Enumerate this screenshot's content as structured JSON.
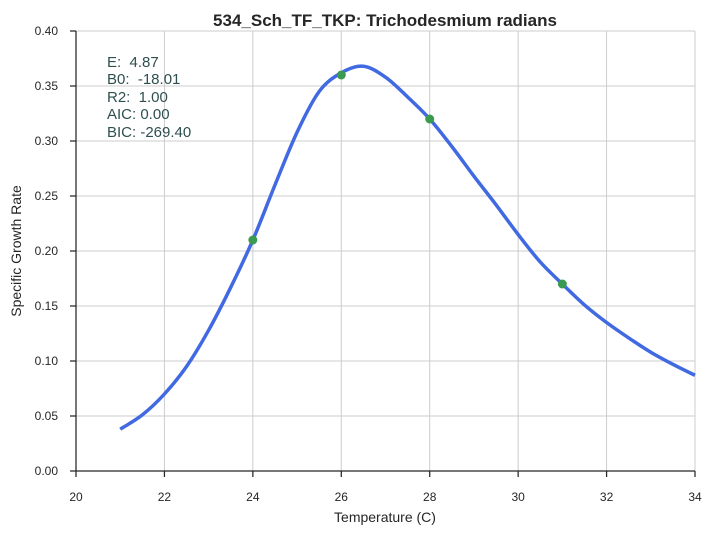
{
  "chart_data": {
    "type": "line",
    "title": "534_Sch_TF_TKP: Trichodesmium radians",
    "xlabel": "Temperature (C)",
    "ylabel": "Specific Growth Rate",
    "xlim": [
      20,
      34
    ],
    "ylim": [
      0.0,
      0.4
    ],
    "x_ticks": [
      20,
      22,
      24,
      26,
      28,
      30,
      32,
      34
    ],
    "y_ticks": [
      "0.00",
      "0.05",
      "0.10",
      "0.15",
      "0.20",
      "0.25",
      "0.30",
      "0.35",
      "0.40"
    ],
    "grid": true,
    "series": [
      {
        "kind": "fitted-curve",
        "color": "#4169e1",
        "x": [
          21,
          21.5,
          22,
          22.5,
          23,
          23.5,
          24,
          24.5,
          25,
          25.5,
          26,
          26.5,
          27,
          27.5,
          28,
          28.5,
          29,
          29.5,
          30,
          30.5,
          31,
          31.5,
          32,
          32.5,
          33,
          33.5,
          34
        ],
        "y": [
          0.038,
          0.051,
          0.07,
          0.095,
          0.128,
          0.167,
          0.21,
          0.26,
          0.308,
          0.345,
          0.362,
          0.368,
          0.358,
          0.34,
          0.32,
          0.295,
          0.268,
          0.242,
          0.215,
          0.19,
          0.17,
          0.151,
          0.135,
          0.121,
          0.108,
          0.097,
          0.087
        ]
      },
      {
        "kind": "observed-points",
        "color": "#3a9a4f",
        "x": [
          24,
          26,
          28,
          31
        ],
        "y": [
          0.21,
          0.36,
          0.32,
          0.17
        ]
      }
    ],
    "annotations": [
      "E:  4.87",
      "B0:  -18.01",
      "R2:  1.00",
      "AIC: 0.00",
      "BIC: -269.40"
    ]
  }
}
